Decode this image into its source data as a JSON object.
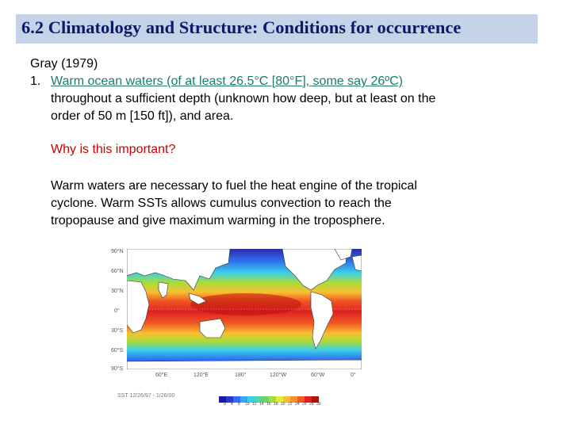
{
  "title": "6.2 Climatology and Structure: Conditions for occurrence",
  "body": {
    "source": "Gray (1979)",
    "item_number": "1.",
    "item_line1": "Warm ocean waters (of at least 26.5°C [80°F], some say 26ºC)",
    "item_line2": "throughout a sufficient depth (unknown how deep, but at least on the",
    "item_line3": "order of 50 m [150 ft]), and area.",
    "question": "Why is this important?",
    "answer_line1": "Warm waters are necessary to fuel the heat engine of the tropical",
    "answer_line2": "cyclone. Warm SSTs allows cumulus convection to reach the",
    "answer_line3": "tropopause and give maximum warming in the troposphere."
  },
  "map": {
    "lat_labels": [
      "90°N",
      "60°N",
      "30°N",
      "0°",
      "30°S",
      "60°S",
      "90°S"
    ],
    "lon_labels": [
      "60°E",
      "120°E",
      "180°",
      "120°W",
      "60°W",
      "0°"
    ],
    "caption": "SST 12/26/97 - 1/26/00",
    "colorbar_labels": [
      "0",
      "4",
      "8",
      "10",
      "12",
      "14",
      "16",
      "18",
      "20",
      "22",
      "24",
      "26",
      "28",
      "30"
    ],
    "colorbar_colors": [
      "#1a1aa0",
      "#2a3ad0",
      "#2f6ef0",
      "#35a8f2",
      "#3ad0e8",
      "#4fd7a8",
      "#6bd36a",
      "#a8dc3a",
      "#e8e83a",
      "#f8c030",
      "#f89030",
      "#f05a24",
      "#e02020",
      "#b01010"
    ]
  }
}
